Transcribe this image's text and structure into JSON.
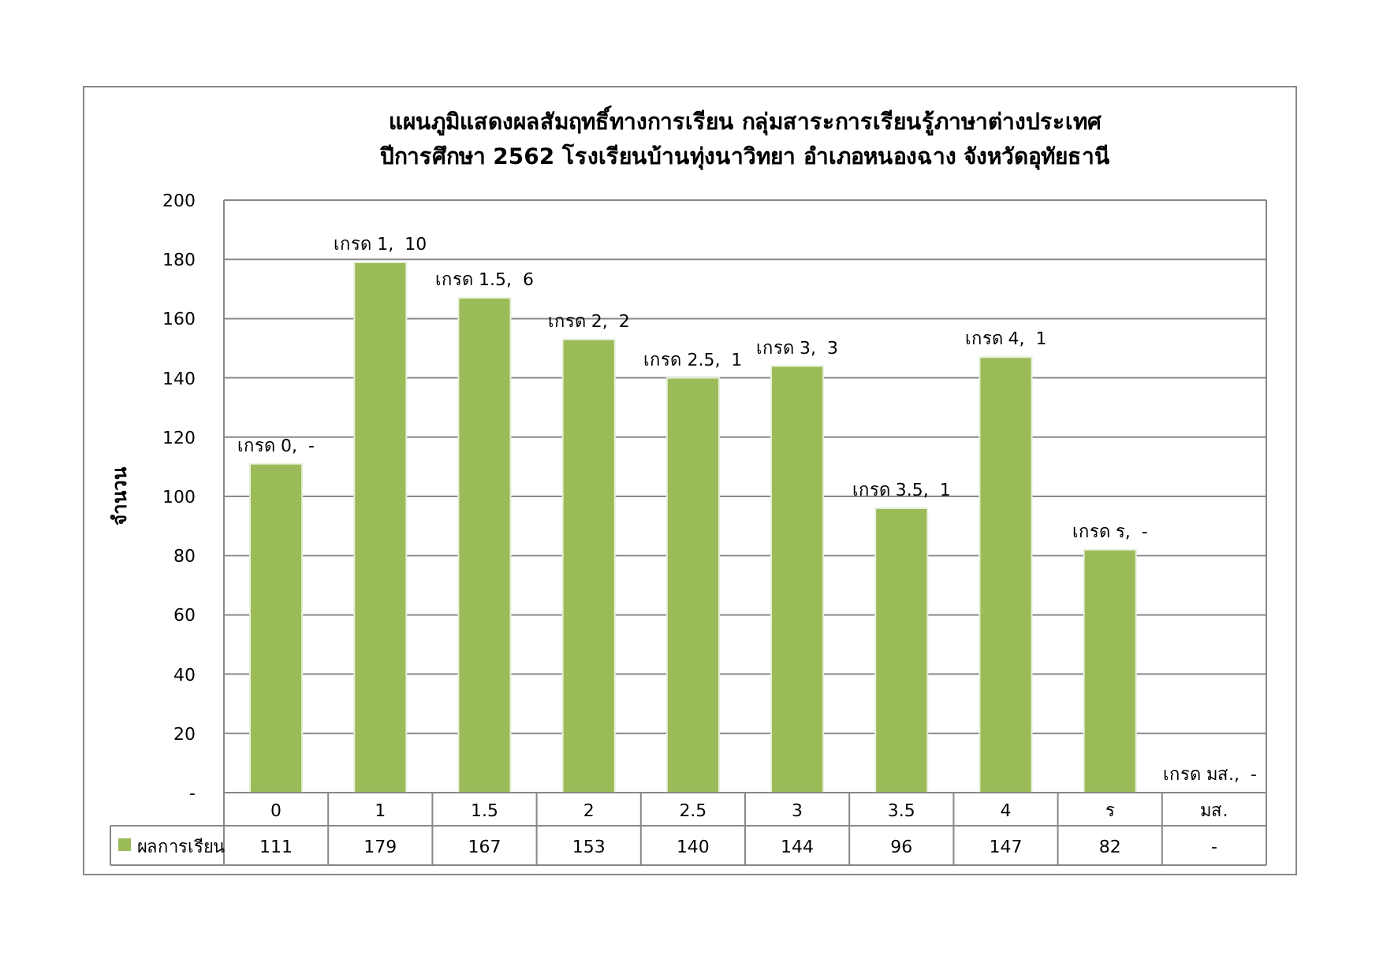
{
  "chart_data": {
    "type": "bar",
    "title": "แผนภูมิแสดงผลสัมฤทธิ์ทางการเรียน กลุ่มสาระการเรียนรู้ภาษาต่างประเทศ\nปีการศึกษา 2562 โรงเรียนบ้านทุ่งนาวิทยา อำเภอหนองฉาง จังหวัดอุทัยธานี",
    "ylabel": "จำนวน",
    "categories": [
      "0",
      "1",
      "1.5",
      "2",
      "2.5",
      "3",
      "3.5",
      "4",
      "ร",
      "มส."
    ],
    "series": [
      {
        "name": "ผลการเรียน",
        "color": "#9bbb59",
        "values": [
          111,
          179,
          167,
          153,
          140,
          144,
          96,
          147,
          82,
          null
        ],
        "value_labels": [
          "111",
          "179",
          "167",
          "153",
          "140",
          "144",
          "96",
          "147",
          "82",
          "-"
        ]
      }
    ],
    "ylim": [
      0,
      200
    ],
    "yticks": [
      {
        "value": 0,
        "label": "-"
      },
      20,
      40,
      60,
      80,
      100,
      120,
      140,
      160,
      180,
      200
    ],
    "grid": "y",
    "legend": "bottom left",
    "annotations": [
      {
        "text": "เกรด 0,  -",
        "x": "0",
        "y": 111
      },
      {
        "text": "เกรด 1,  10",
        "x": "1",
        "y": 179
      },
      {
        "text": "เกรด 1.5,  6",
        "x": "1.5",
        "y": 167
      },
      {
        "text": "เกรด 2,  2",
        "x": "2",
        "y": 153
      },
      {
        "text": "เกรด 2.5,  1",
        "x": "2.5",
        "y": 140
      },
      {
        "text": "เกรด 3,  3",
        "x": "3",
        "y": 144
      },
      {
        "text": "เกรด 3.5,  1",
        "x": "3.5",
        "y": 96
      },
      {
        "text": "เกรด 4,  1",
        "x": "4",
        "y": 147
      },
      {
        "text": "เกรด ร,  -",
        "x": "ร",
        "y": 82
      },
      "เกรด มส.,  -"
    ]
  }
}
